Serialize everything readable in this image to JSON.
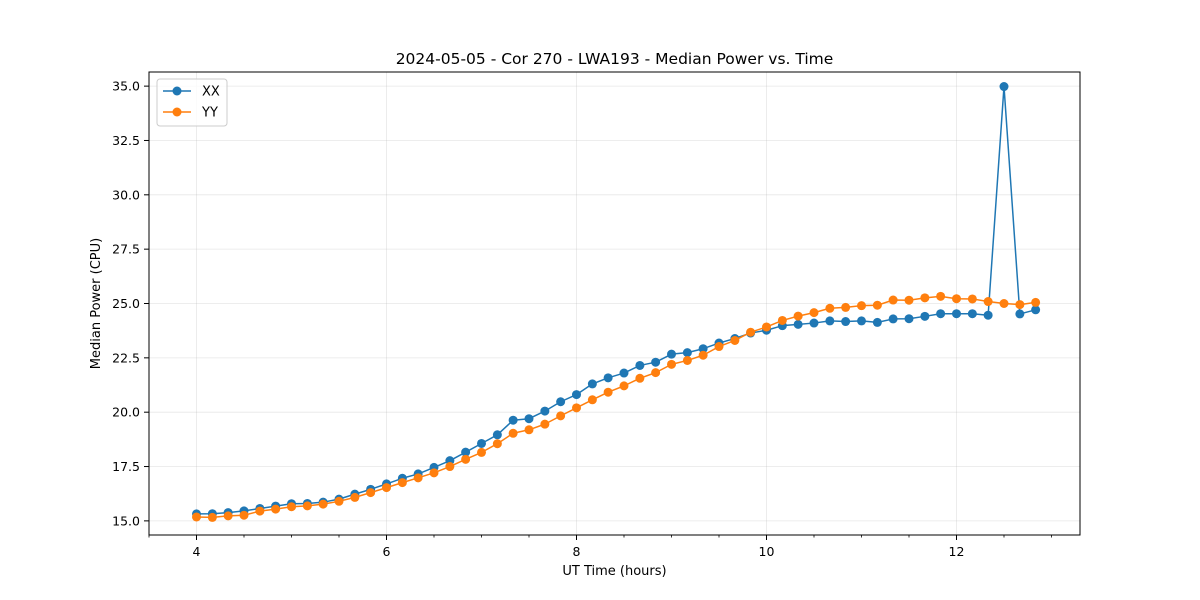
{
  "chart_data": {
    "type": "line",
    "title": "2024-05-05 - Cor 270 - LWA193 - Median Power vs. Time",
    "xlabel": "UT Time (hours)",
    "ylabel": "Median Power (CPU)",
    "xlim": [
      3.5,
      13.3
    ],
    "ylim": [
      14.35,
      35.65
    ],
    "xticks": [
      4,
      6,
      8,
      10,
      12
    ],
    "xtick_labels": [
      "4",
      "6",
      "8",
      "10",
      "12"
    ],
    "yticks": [
      15.0,
      17.5,
      20.0,
      22.5,
      25.0,
      27.5,
      30.0,
      32.5,
      35.0
    ],
    "ytick_labels": [
      "15.0",
      "17.5",
      "20.0",
      "22.5",
      "25.0",
      "27.5",
      "30.0",
      "32.5",
      "35.0"
    ],
    "grid": true,
    "legend_position": "top-left",
    "x": [
      4.0,
      4.167,
      4.333,
      4.5,
      4.667,
      4.833,
      5.0,
      5.167,
      5.333,
      5.5,
      5.667,
      5.833,
      6.0,
      6.167,
      6.333,
      6.5,
      6.667,
      6.833,
      7.0,
      7.167,
      7.333,
      7.5,
      7.667,
      7.833,
      8.0,
      8.167,
      8.333,
      8.5,
      8.667,
      8.833,
      9.0,
      9.167,
      9.333,
      9.5,
      9.667,
      9.833,
      10.0,
      10.167,
      10.333,
      10.5,
      10.667,
      10.833,
      11.0,
      11.167,
      11.333,
      11.5,
      11.667,
      11.833,
      12.0,
      12.167,
      12.333,
      12.5,
      12.667,
      12.833
    ],
    "series": [
      {
        "name": "XX",
        "color": "#1f77b4",
        "values": [
          15.32,
          15.33,
          15.38,
          15.46,
          15.57,
          15.68,
          15.79,
          15.8,
          15.86,
          16.0,
          16.23,
          16.45,
          16.7,
          16.96,
          17.16,
          17.46,
          17.77,
          18.16,
          18.56,
          18.96,
          19.63,
          19.7,
          20.05,
          20.48,
          20.81,
          21.3,
          21.58,
          21.8,
          22.15,
          22.3,
          22.67,
          22.74,
          22.92,
          23.18,
          23.39,
          23.64,
          23.77,
          23.98,
          24.04,
          24.1,
          24.2,
          24.17,
          24.2,
          24.13,
          24.29,
          24.3,
          24.41,
          24.53,
          24.53,
          24.53,
          24.46,
          34.98,
          24.52,
          24.71
        ]
      },
      {
        "name": "YY",
        "color": "#ff7f0e",
        "values": [
          15.18,
          15.16,
          15.23,
          15.26,
          15.45,
          15.54,
          15.65,
          15.69,
          15.77,
          15.9,
          16.08,
          16.3,
          16.53,
          16.76,
          16.98,
          17.21,
          17.5,
          17.83,
          18.15,
          18.55,
          19.03,
          19.19,
          19.45,
          19.83,
          20.2,
          20.57,
          20.92,
          21.21,
          21.56,
          21.82,
          22.2,
          22.38,
          22.62,
          23.02,
          23.3,
          23.68,
          23.92,
          24.22,
          24.42,
          24.58,
          24.78,
          24.82,
          24.9,
          24.92,
          25.16,
          25.15,
          25.26,
          25.33,
          25.22,
          25.21,
          25.09,
          25.0,
          24.95,
          25.05
        ]
      }
    ]
  }
}
